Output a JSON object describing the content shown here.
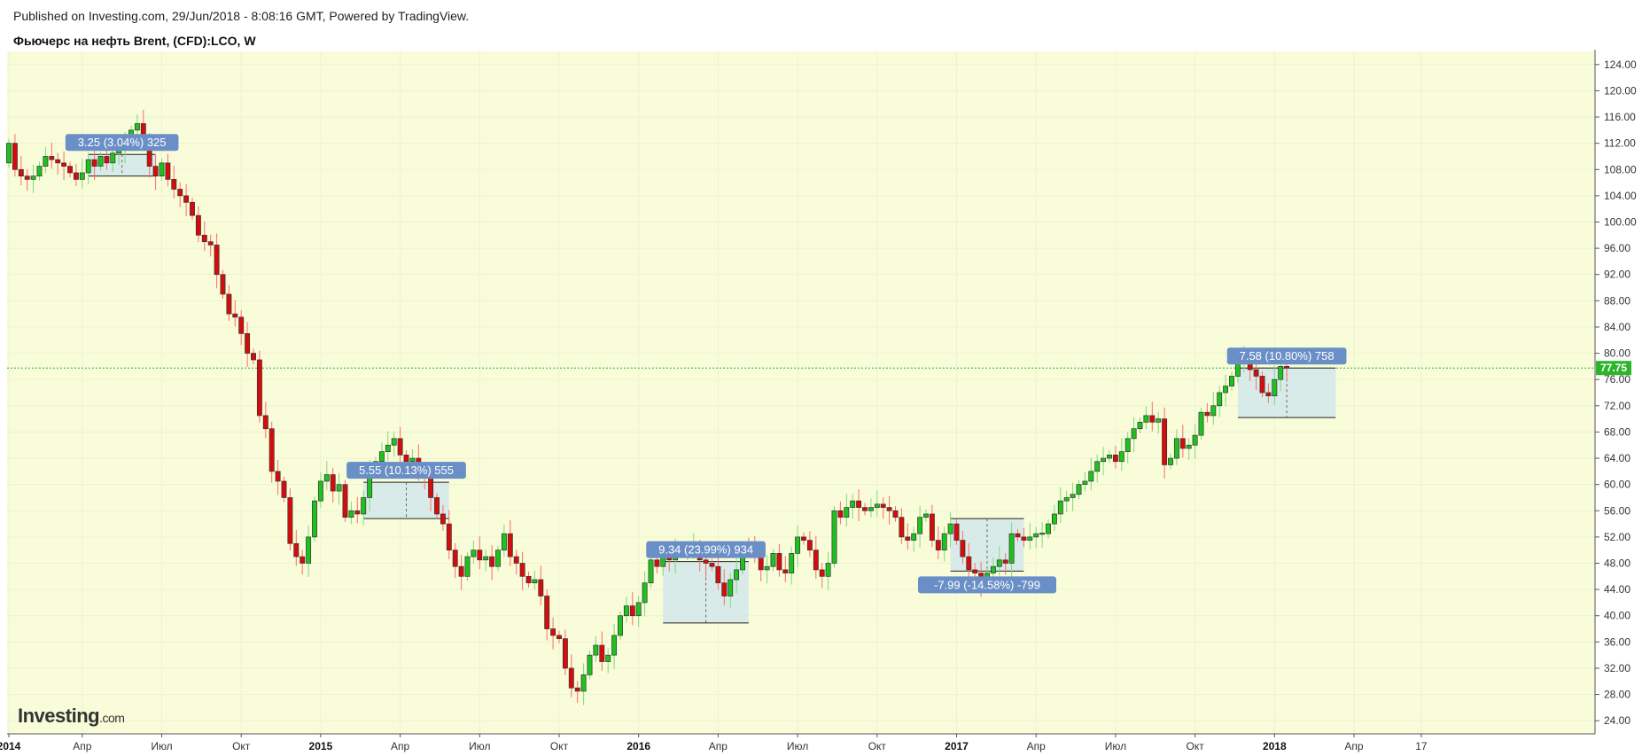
{
  "header": {
    "published": "Published on Investing.com, 29/Jun/2018 - 8:08:16 GMT, Powered by TradingView.",
    "title": "Фьючерс на нефть Brent, (CFD):LCO, W"
  },
  "logo": {
    "brand": "Investing",
    "suffix": ".com"
  },
  "colors": {
    "plot_bg": "#f8fcd8",
    "up": "#1fc11f",
    "down": "#d60c0c",
    "wick": "#ff6b6b",
    "label_bg": "#6a8fc7",
    "box_fill": "#cfe5ee",
    "last_price_line": "#2bb52b"
  },
  "chart_data": {
    "type": "candlestick",
    "interval": "W",
    "ylim": [
      22,
      126
    ],
    "y_ticks": [
      "24.00",
      "28.00",
      "32.00",
      "36.00",
      "40.00",
      "44.00",
      "48.00",
      "52.00",
      "56.00",
      "60.00",
      "64.00",
      "68.00",
      "72.00",
      "76.00",
      "80.00",
      "84.00",
      "88.00",
      "92.00",
      "96.00",
      "100.00",
      "104.00",
      "108.00",
      "112.00",
      "116.00",
      "120.00",
      "124.00"
    ],
    "x_ticks": [
      {
        "label": "2014",
        "week": 0,
        "bold": true
      },
      {
        "label": "Апр",
        "week": 12
      },
      {
        "label": "Июл",
        "week": 25
      },
      {
        "label": "Окт",
        "week": 38
      },
      {
        "label": "2015",
        "week": 51,
        "bold": true
      },
      {
        "label": "Апр",
        "week": 64
      },
      {
        "label": "Июл",
        "week": 77
      },
      {
        "label": "Окт",
        "week": 90
      },
      {
        "label": "2016",
        "week": 103,
        "bold": true
      },
      {
        "label": "Апр",
        "week": 116
      },
      {
        "label": "Июл",
        "week": 129
      },
      {
        "label": "Окт",
        "week": 142
      },
      {
        "label": "2017",
        "week": 155,
        "bold": true
      },
      {
        "label": "Апр",
        "week": 168
      },
      {
        "label": "Июл",
        "week": 181
      },
      {
        "label": "Окт",
        "week": 194
      },
      {
        "label": "2018",
        "week": 207,
        "bold": true
      },
      {
        "label": "Апр",
        "week": 220
      },
      {
        "label": "17",
        "week": 231
      }
    ],
    "last_price": {
      "value": 77.75,
      "label": "77.75"
    },
    "closes": [
      112,
      108,
      107,
      106.5,
      107,
      108.5,
      110,
      109.5,
      109,
      108.5,
      107.5,
      106.5,
      107.5,
      109.5,
      108.5,
      110,
      109,
      110.5,
      111,
      112,
      114,
      115,
      112.5,
      108.5,
      107,
      109,
      106.5,
      105,
      104,
      103,
      101,
      98,
      97,
      96.5,
      92,
      89,
      86,
      85.5,
      83,
      80,
      79,
      70.5,
      68.5,
      62,
      60.5,
      58,
      51,
      49,
      48,
      52,
      57.5,
      60.5,
      61.5,
      59,
      60,
      55,
      56,
      55.5,
      58,
      62,
      63.5,
      65,
      66,
      67,
      64.5,
      63.5,
      64,
      62,
      61,
      58,
      55.5,
      54,
      50,
      47.5,
      46,
      49,
      50,
      48.5,
      49,
      47.5,
      50,
      52.5,
      49,
      48,
      46,
      45,
      45.5,
      43,
      38,
      37,
      36.5,
      32,
      29,
      28.5,
      31,
      34,
      35.5,
      33,
      34,
      37,
      40,
      41.5,
      40,
      42,
      45,
      48.5,
      47.5,
      49,
      48.5,
      50,
      49.5,
      50,
      50.5,
      48.5,
      48,
      47.5,
      45,
      43,
      45.5,
      47,
      50.5,
      50,
      49.5,
      47,
      47.5,
      49.5,
      47,
      46.5,
      49.5,
      52,
      51.5,
      50,
      47,
      46,
      48,
      56,
      55,
      56.5,
      57.5,
      56.5,
      56,
      56.5,
      57,
      56.5,
      56,
      55,
      52,
      51.5,
      52.5,
      55,
      55.5,
      51.5,
      50,
      52.5,
      54,
      51.5,
      49,
      47,
      46.5,
      45,
      46.5,
      47.5,
      48.5,
      48,
      52.5,
      52,
      51.5,
      52,
      52.5,
      52.5,
      54,
      55.5,
      57.5,
      58,
      58.5,
      60,
      60.5,
      62,
      63.5,
      64,
      64.5,
      63.5,
      65,
      67,
      68.5,
      69.5,
      70.5,
      69.5,
      70,
      63,
      64,
      67,
      65.5,
      66,
      67.5,
      71,
      70.5,
      72,
      74,
      75,
      76.5,
      78.5,
      79,
      77.5,
      76.5,
      74,
      73.5,
      76,
      78,
      77.75
    ],
    "measurements": [
      {
        "label": "3.25 (3.04%) 325",
        "w0": 13,
        "w1": 24,
        "p_low": 107,
        "p_high": 110.3,
        "label_at": "top"
      },
      {
        "label": "5.55 (10.13%) 555",
        "w0": 58,
        "w1": 72,
        "p_low": 54.8,
        "p_high": 60.35,
        "label_at": "top"
      },
      {
        "label": "9.34 (23.99%) 934",
        "w0": 107,
        "w1": 121,
        "p_low": 38.9,
        "p_high": 48.25,
        "label_at": "top"
      },
      {
        "label": "-7.99 (-14.58%) -799",
        "w0": 154,
        "w1": 166,
        "p_low": 46.8,
        "p_high": 54.8,
        "label_at": "bottom"
      },
      {
        "label": "7.58 (10.80%) 758",
        "w0": 201,
        "w1": 217,
        "p_low": 70.2,
        "p_high": 77.75,
        "label_at": "top"
      }
    ]
  }
}
